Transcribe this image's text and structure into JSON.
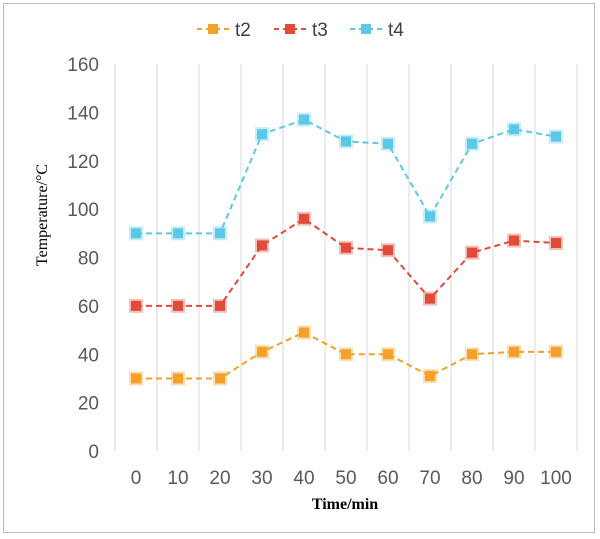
{
  "chart_data": {
    "type": "line",
    "title": "",
    "xlabel": "Time/min",
    "ylabel": "Temperature/°C",
    "x": [
      0,
      10,
      20,
      30,
      40,
      50,
      60,
      70,
      80,
      90,
      100
    ],
    "x_tick_labels": [
      "0",
      "10",
      "20",
      "30",
      "40",
      "50",
      "60",
      "70",
      "80",
      "90",
      "100"
    ],
    "ylim": [
      0,
      160
    ],
    "y_ticks": [
      0,
      20,
      40,
      60,
      80,
      100,
      120,
      140,
      160
    ],
    "y_tick_labels": [
      "0",
      "20",
      "40",
      "60",
      "80",
      "100",
      "120",
      "140",
      "160"
    ],
    "grid": "vertical",
    "legend_position": "top-center",
    "series": [
      {
        "name": "t2",
        "color": "#f5a02a",
        "values": [
          30,
          30,
          30,
          41,
          49,
          40,
          40,
          31,
          40,
          41,
          41
        ]
      },
      {
        "name": "t3",
        "color": "#e04b3a",
        "values": [
          60,
          60,
          60,
          85,
          96,
          84,
          83,
          63,
          82,
          87,
          86
        ]
      },
      {
        "name": "t4",
        "color": "#5cc8e8",
        "values": [
          90,
          90,
          90,
          131,
          137,
          128,
          127,
          97,
          127,
          133,
          130
        ]
      }
    ]
  }
}
